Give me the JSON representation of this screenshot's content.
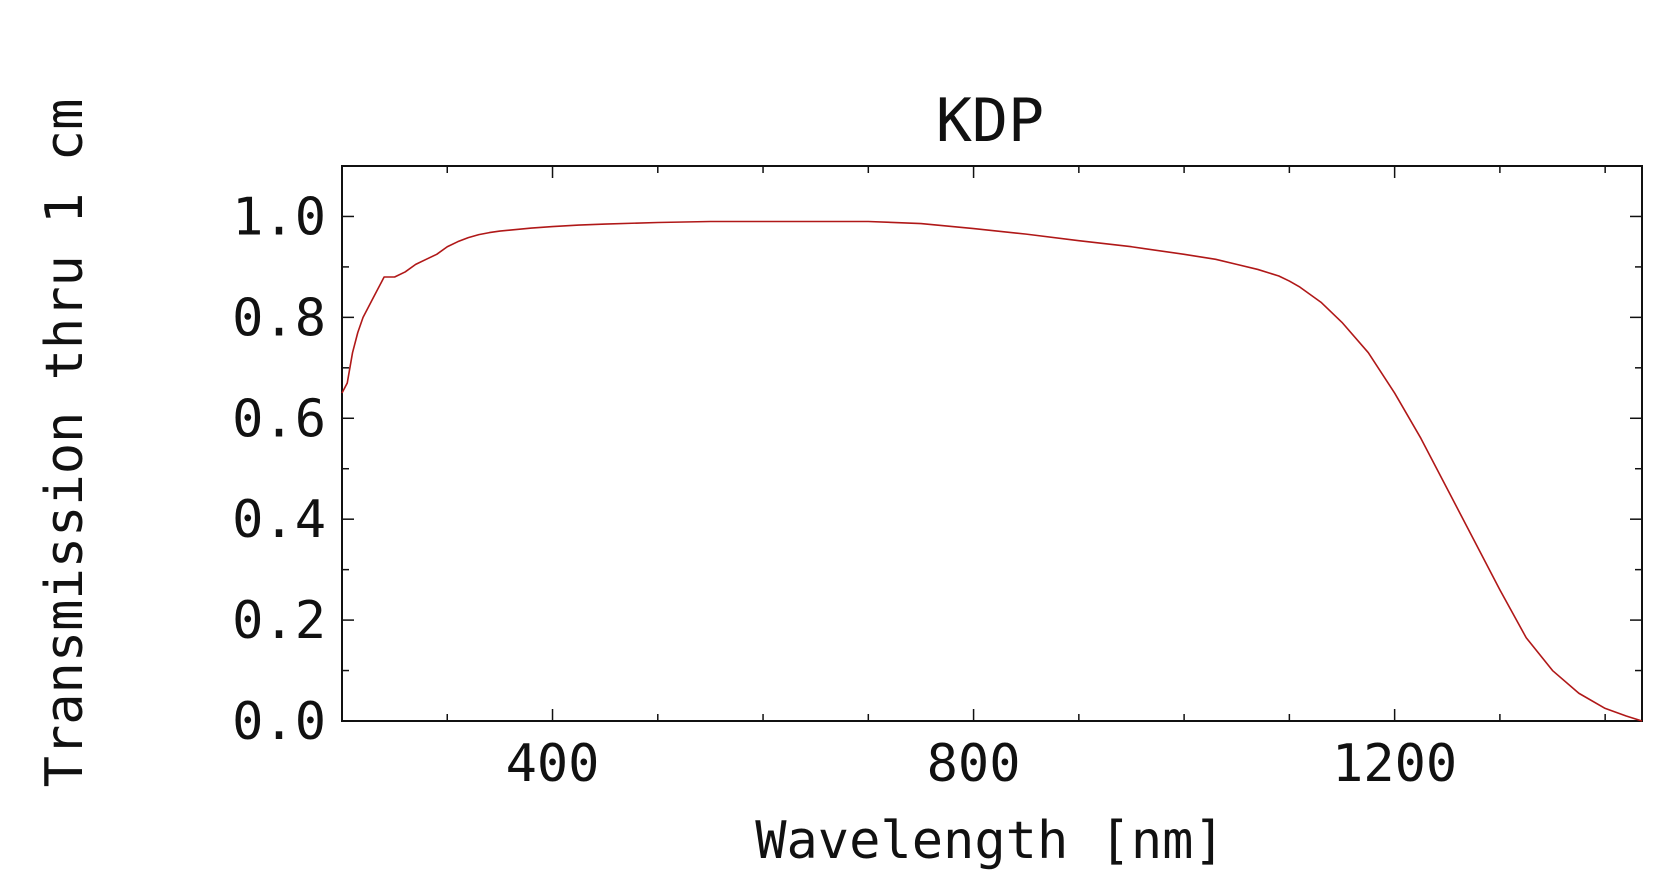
{
  "chart_data": {
    "type": "line",
    "title": "KDP",
    "xlabel": "Wavelength [nm]",
    "ylabel": "Transmission thru 1 cm",
    "xlim": [
      200,
      1435
    ],
    "ylim": [
      0,
      1.1
    ],
    "x_ticks": [
      400,
      800,
      1200
    ],
    "x_tick_labels": [
      "400",
      "800",
      "1200"
    ],
    "x_minor_ticks": [
      300,
      500,
      600,
      700,
      900,
      1000,
      1100,
      1300,
      1400
    ],
    "y_ticks": [
      0,
      0.2,
      0.4,
      0.6,
      0.8,
      1.0
    ],
    "y_tick_labels": [
      "0.0",
      "0.2",
      "0.4",
      "0.6",
      "0.8",
      "1.0"
    ],
    "y_minor_ticks": [
      0.1,
      0.3,
      0.5,
      0.7,
      0.9,
      1.1
    ],
    "grid": false,
    "line_color": "#b01818",
    "series": [
      {
        "x": [
          200,
          205,
          210,
          215,
          220,
          225,
          230,
          240,
          245,
          250,
          260,
          270,
          280,
          290,
          300,
          310,
          320,
          330,
          340,
          350,
          360,
          370,
          380,
          400,
          425,
          450,
          500,
          550,
          600,
          650,
          700,
          750,
          800,
          850,
          900,
          950,
          1000,
          1030,
          1050,
          1070,
          1090,
          1100,
          1110,
          1130,
          1150,
          1175,
          1200,
          1225,
          1250,
          1275,
          1300,
          1325,
          1350,
          1375,
          1400,
          1420,
          1435
        ],
        "y": [
          0.65,
          0.67,
          0.73,
          0.77,
          0.8,
          0.82,
          0.84,
          0.88,
          0.88,
          0.88,
          0.89,
          0.905,
          0.915,
          0.925,
          0.94,
          0.95,
          0.958,
          0.964,
          0.968,
          0.971,
          0.973,
          0.975,
          0.977,
          0.98,
          0.983,
          0.985,
          0.988,
          0.99,
          0.99,
          0.99,
          0.99,
          0.986,
          0.976,
          0.965,
          0.952,
          0.94,
          0.925,
          0.915,
          0.905,
          0.895,
          0.882,
          0.872,
          0.86,
          0.83,
          0.79,
          0.73,
          0.65,
          0.56,
          0.46,
          0.36,
          0.26,
          0.165,
          0.1,
          0.055,
          0.025,
          0.01,
          0.0
        ]
      }
    ]
  }
}
